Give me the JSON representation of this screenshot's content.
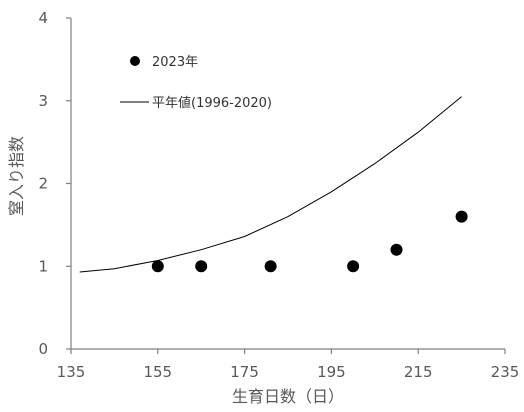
{
  "chart_data": {
    "type": "scatter",
    "xlabel": "生育日数（日）",
    "ylabel": "窒入り指数",
    "xlim": [
      135,
      235
    ],
    "ylim": [
      0,
      4
    ],
    "x_ticks": [
      "135",
      "155",
      "175",
      "195",
      "215",
      "235"
    ],
    "y_ticks": [
      "0",
      "1",
      "2",
      "3",
      "4"
    ],
    "grid": false,
    "legend_position": "top-left",
    "series": [
      {
        "name": "2023年",
        "kind": "points",
        "color": "#000000",
        "x": [
          155,
          165,
          181,
          200,
          210,
          225
        ],
        "y": [
          1.0,
          1.0,
          1.0,
          1.0,
          1.2,
          1.6
        ]
      },
      {
        "name": "平年値(1996-2020)",
        "kind": "line",
        "color": "#000000",
        "x": [
          137,
          145,
          155,
          165,
          175,
          185,
          195,
          205,
          215,
          225
        ],
        "y": [
          0.93,
          0.97,
          1.07,
          1.2,
          1.36,
          1.6,
          1.9,
          2.24,
          2.62,
          3.05
        ]
      }
    ]
  }
}
